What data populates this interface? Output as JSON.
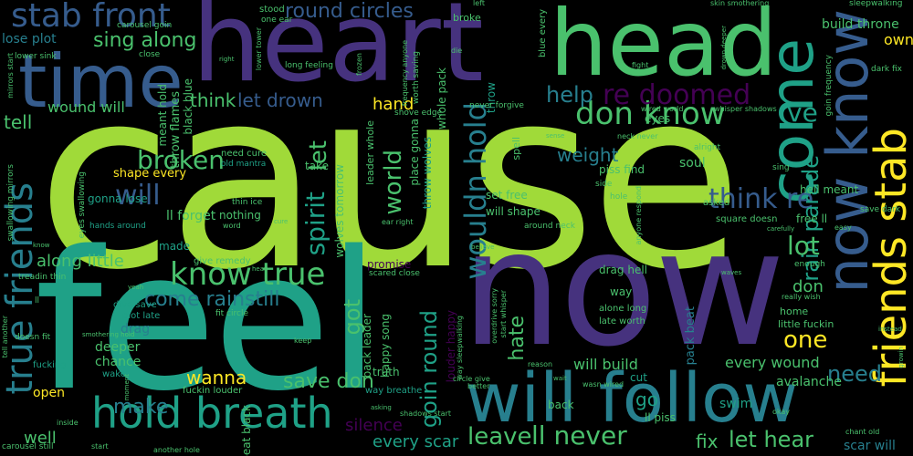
{
  "colors": {
    "background": "#000000",
    "lime": "#a0da39",
    "green": "#4ac16d",
    "teal": "#1fa187",
    "cyan": "#277f8e",
    "blue": "#365c8d",
    "indigo": "#46327e",
    "purple": "#440154",
    "yellow": "#fde725"
  },
  "words": {
    "cause": "cause",
    "heart": "heart",
    "head": "head",
    "feel": "feel",
    "now": "now",
    "time": "time",
    "come": "come",
    "know_v": "know",
    "now_know": "now know",
    "friends_stab": "friends stab",
    "will_follow": "will follow",
    "hold_breath": "hold breath",
    "true_friends": "true friends",
    "stab_front": "stab front",
    "round_circles": "round circles",
    "don_know": "don know",
    "ve": "ve",
    "sing_along": "sing along",
    "re_doomed": "re doomed",
    "help": "help",
    "let_drown": "let drown",
    "think": "think",
    "hand": "hand",
    "wound_will": "wound will",
    "tell": "tell",
    "broken": "broken",
    "will": "will",
    "spirit": "spirit",
    "let": "let",
    "wouldn_hold": "wouldn hold",
    "world": "world",
    "weight": "weight",
    "think_re": "think re",
    "rain_parade": "rain parade",
    "lot": "lot",
    "know_true": "know true",
    "come_rain": "come rain",
    "still": "still",
    "got": "got",
    "goin_round": "goin round",
    "hate": "hate",
    "one": "one",
    "don": "don",
    "need": "need",
    "wanna": "wanna",
    "save_don": "save don",
    "make": "make",
    "leave": "leave",
    "ll_never": "ll never",
    "fix": "fix",
    "let_hear": "let hear",
    "silence": "silence",
    "go": "go",
    "along_little": "along little",
    "well": "well",
    "open": "open",
    "every_scar": "every scar",
    "will_build": "will build",
    "every_wound": "every wound",
    "avalanche": "avalanche",
    "swim": "swim",
    "scar_will": "scar will",
    "build_throne": "build throne",
    "own": "own",
    "lose_plot": "lose plot",
    "throw_flames": "throw flames",
    "meant_hold": "meant hold",
    "black_blue": "black blue",
    "shape_every": "shape every",
    "gonna_lose": "gonna lose",
    "ll_forget": "ll forget",
    "nothing": "nothing",
    "made": "made",
    "give_remedy": "give remedy",
    "dive_save": "dive save",
    "plot_late": "plot late",
    "drag": "drag",
    "deeper": "deeper",
    "chance": "chance",
    "wake": "wake",
    "fucking": "fucking",
    "fuckin_louder": "fuckin louder",
    "beat_black": "beat black",
    "way_breathe": "way breathe",
    "truth": "truth",
    "cut": "cut",
    "back": "back",
    "ll_piss": "ll piss",
    "pack_beat": "pack beat",
    "alone_long": "alone long",
    "late_worth": "late worth",
    "way": "way",
    "little_fuckin": "little fuckin",
    "home": "home",
    "really_wish": "really wish",
    "enough": "enough",
    "free_ll": "free ll",
    "hell_meant": "hell meant",
    "square_doesn": "square doesn",
    "asked": "asked",
    "set_free": "set free",
    "will_shape": "will shape",
    "drag_hell": "drag hell",
    "piss_find": "piss find",
    "soul": "soul",
    "alright": "alright",
    "sing": "sing",
    "eyes": "eyes",
    "place_gonna": "place gonna",
    "throw_wolves": "throw wolves",
    "whole_pack": "whole pack",
    "spell": "spell",
    "throw": "throw",
    "never_forgive": "never forgive",
    "shove_edge": "shove edge",
    "leader_whole": "leader whole",
    "wolves_tomorrow": "wolves tomorrow",
    "back_leader": "back leader",
    "happy_song": "happy song",
    "louder_happy": "louder happy",
    "promise": "promise",
    "scared_close": "scared close",
    "take": "take",
    "need_cure": "need cure",
    "old_mantra": "old mantra",
    "thin_ice": "thin ice",
    "word": "word",
    "ear_right": "ear right",
    "around_neck": "around neck",
    "hands_around": "hands around",
    "eyes_swallowing": "eyes swallowing",
    "swallowing_mirrors": "swallowing mirrors",
    "mirrors_start": "mirrors start",
    "lower_sink": "lower sink",
    "carousel_goin": "carousel goin",
    "close": "close",
    "stood": "stood",
    "one_ear": "one ear",
    "broke": "broke",
    "left": "left",
    "long_feeling": "long feeling",
    "frozen": "frozen",
    "worth_saving": "worth saving",
    "die": "die",
    "blue_every": "blue every",
    "fight": "fight",
    "skin_smothering": "skin smothering",
    "sleepwalking": "sleepwalking",
    "dark_fix": "dark fix",
    "goin_frequency": "goin frequency",
    "wired_world": "wired world",
    "whisper_shadows": "whisper shadows",
    "neck_never": "neck never",
    "sense": "sense",
    "side": "side",
    "hole": "hole",
    "anyone_respond": "anyone respond",
    "save_dark": "save dark",
    "easy": "easy",
    "carefully": "carefully",
    "believe": "believe",
    "know_small": "know",
    "treadin_thin": "treadin thin",
    "hear": "hear",
    "ll": "ll",
    "tell_another": "tell another",
    "doesn_fit": "doesn fit",
    "smothering_hold": "smothering hold",
    "fit_circle": "fit circle",
    "yeah": "yeah",
    "keep": "keep",
    "overdrive_sorry": "overdrive sorry",
    "start_whisper": "start whisper",
    "way_sleepwalking": "way sleepwalking",
    "wasn_wired": "wasn wired",
    "reason": "reason",
    "wait": "wait",
    "waves": "waves",
    "instead": "instead",
    "growin": "growin",
    "circle_give": "circle give",
    "better": "better",
    "shadows_start": "shadows start",
    "asking": "asking",
    "okay": "okay",
    "chant_old": "chant old",
    "inside": "inside",
    "start": "start",
    "another_hole": "another hole",
    "carousel_still": "carousel still",
    "right": "right",
    "frequency_anyone": "frequency anyone",
    "lower_tower": "lower tower",
    "drown_deeper": "drown deeper",
    "moment": "moment",
    "cure": "cure"
  }
}
